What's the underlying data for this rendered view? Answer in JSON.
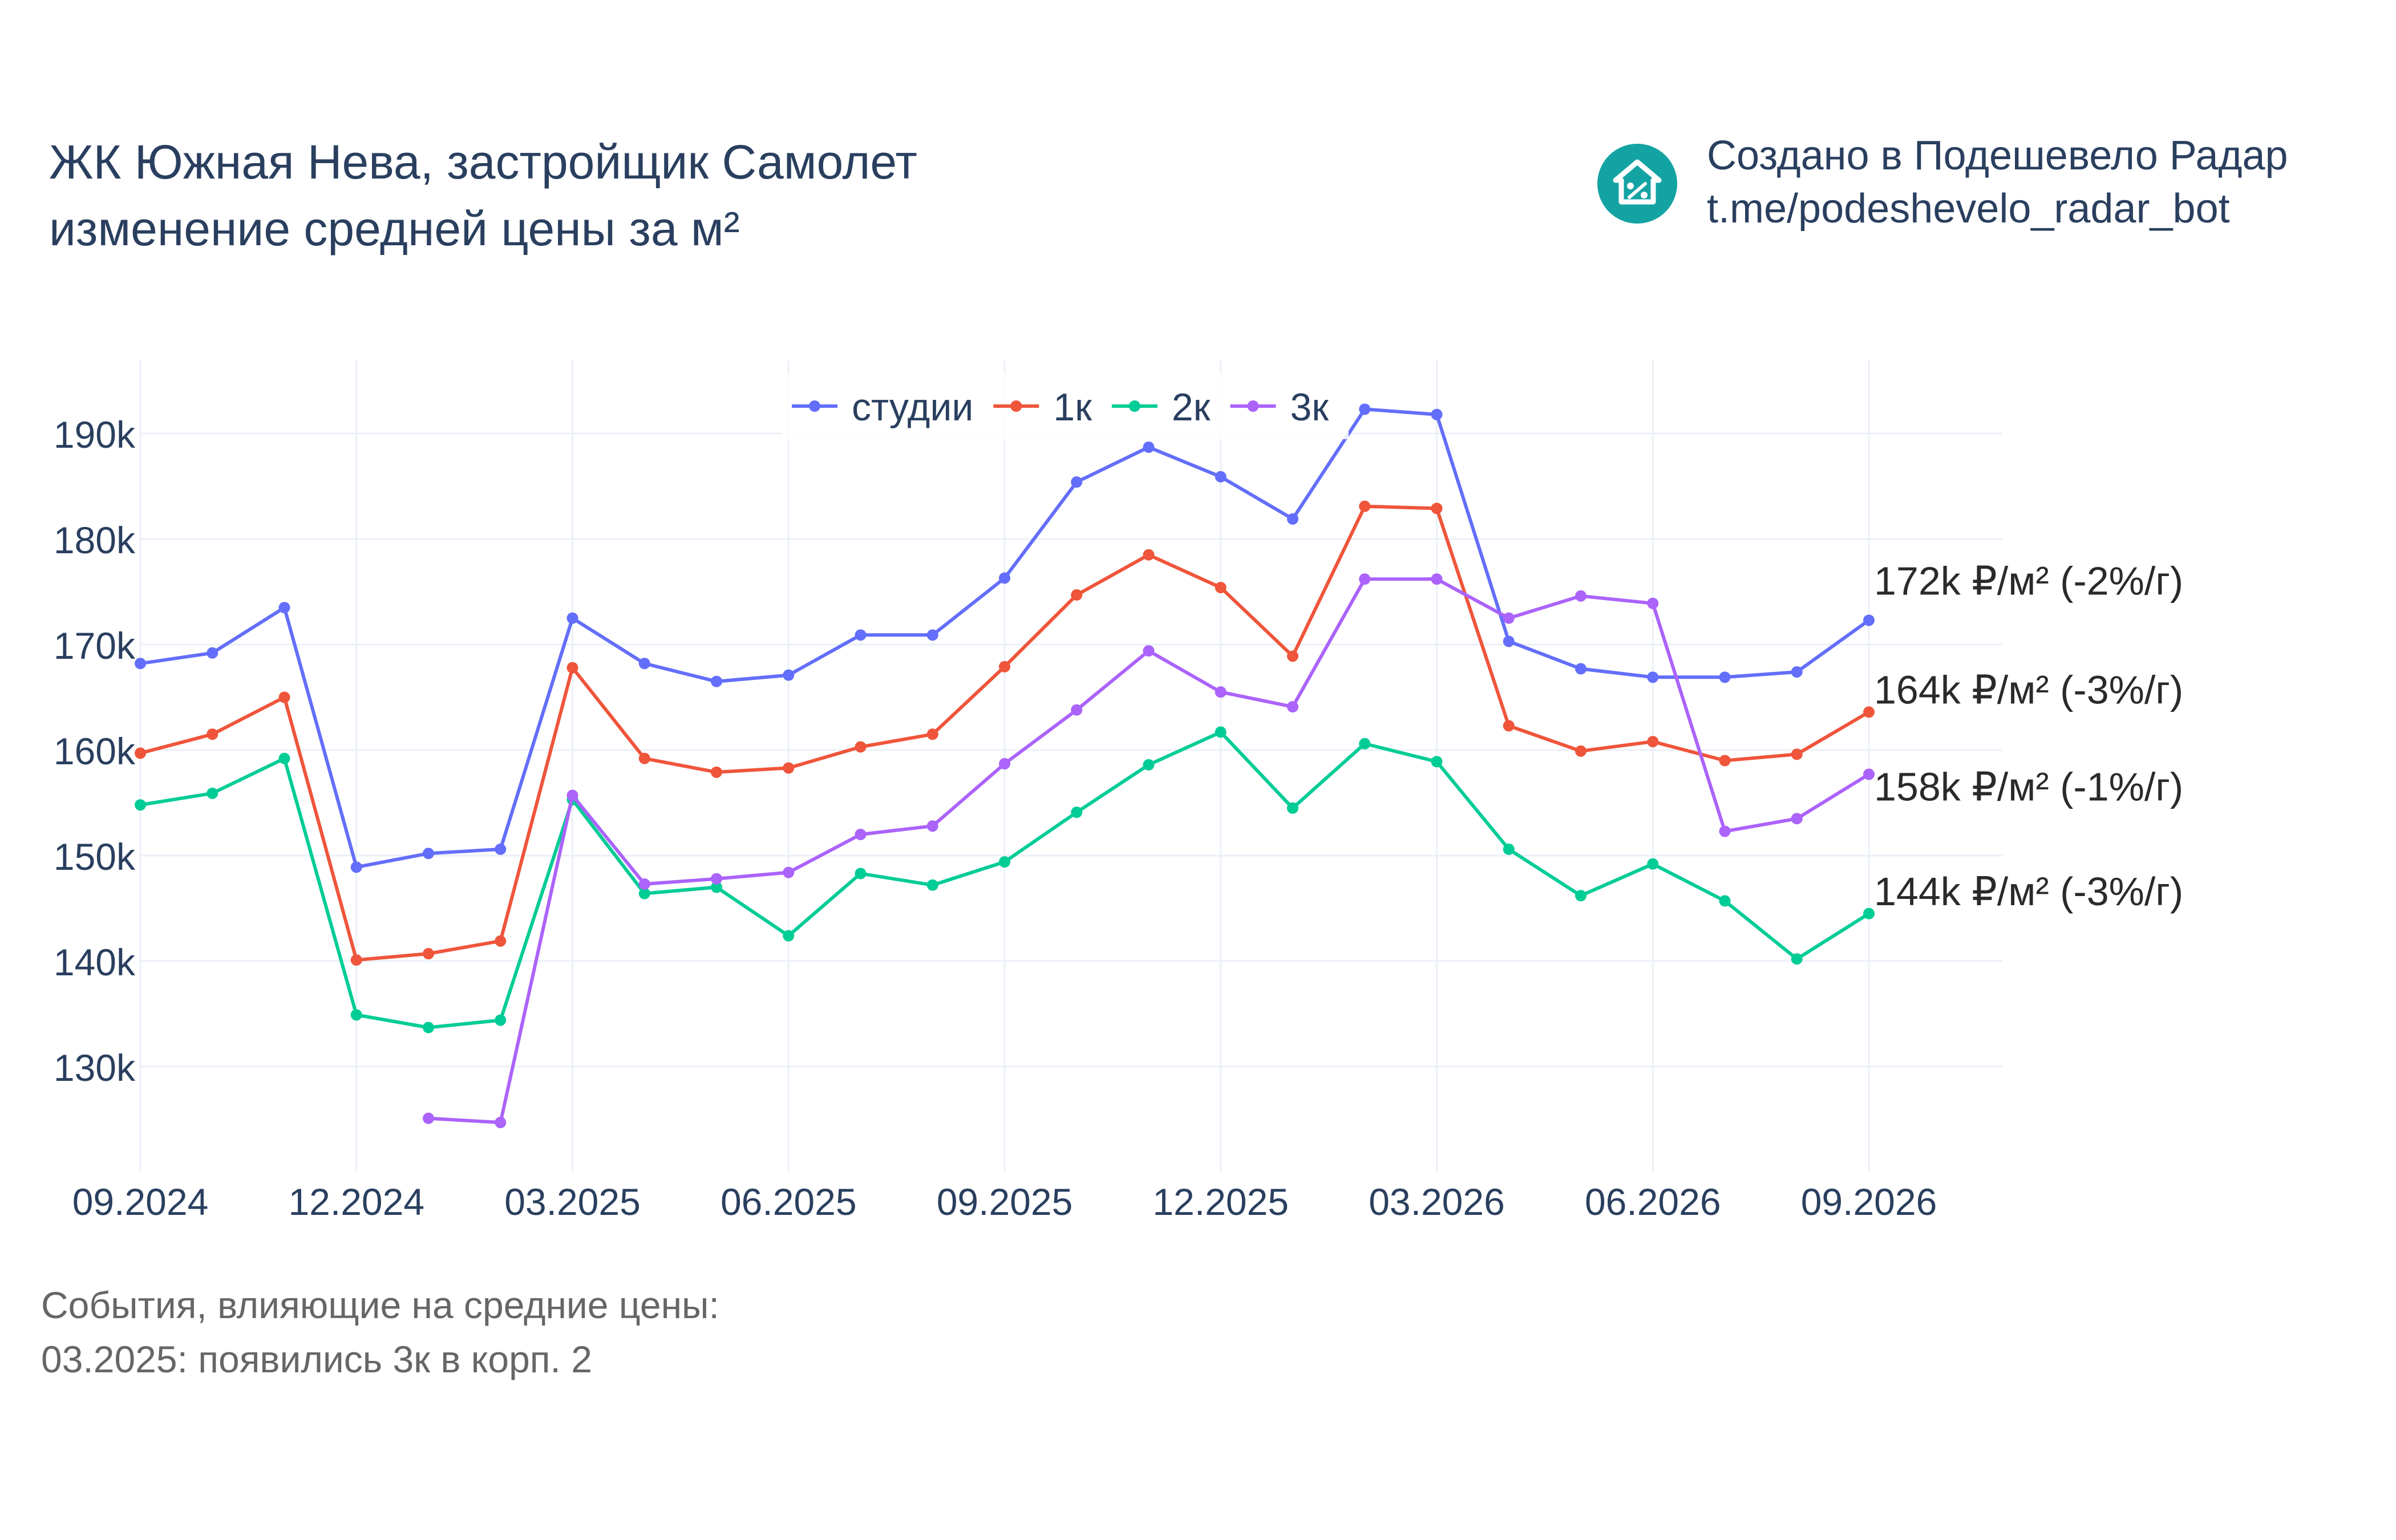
{
  "title": {
    "line1": "ЖК Южная Нева, застройщик Самолет",
    "line2": "изменение средней цены за м²"
  },
  "credit": {
    "line1": "Создано в Подешевело Радар",
    "line2": "t.me/podeshevelo_radar_bot",
    "logo_icon": "house-percent-icon",
    "logo_color": "#13a3a3"
  },
  "events": {
    "heading": "События, влияющие на средние цены:",
    "items": [
      "03.2025: появились 3к в корп. 2"
    ]
  },
  "chart_data": {
    "type": "line",
    "x": [
      "09.2024",
      "10.2024",
      "11.2024",
      "12.2024",
      "01.2025",
      "02.2025",
      "03.2025",
      "04.2025",
      "05.2025",
      "06.2025",
      "07.2025",
      "08.2025",
      "09.2025",
      "10.2025",
      "11.2025",
      "12.2025",
      "01.2026",
      "02.2026",
      "03.2026",
      "04.2026",
      "05.2026",
      "06.2026",
      "07.2026",
      "08.2026",
      "09.2026"
    ],
    "x_tick_labels": [
      "09.2024",
      "12.2024",
      "03.2025",
      "06.2025",
      "09.2025",
      "12.2025",
      "03.2026",
      "06.2026",
      "09.2026"
    ],
    "y_tick_labels": [
      "130k",
      "140k",
      "150k",
      "160k",
      "170k",
      "180k",
      "190k"
    ],
    "y_ticks": [
      130000,
      140000,
      150000,
      160000,
      170000,
      180000,
      190000
    ],
    "ylim": [
      120000,
      197000
    ],
    "grid": true,
    "legend_position": "top-center",
    "series": [
      {
        "name": "студии",
        "color": "#636efa",
        "values": [
          168200,
          169200,
          173500,
          148900,
          150200,
          150600,
          172500,
          168200,
          166500,
          167100,
          170900,
          170900,
          176300,
          185400,
          188700,
          185900,
          181900,
          192300,
          191800,
          170300,
          167700,
          166900,
          166900,
          167400,
          172300
        ],
        "end_label": "172k ₽/м² (-2%/г)"
      },
      {
        "name": "1к",
        "color": "#ef553b",
        "values": [
          159700,
          161500,
          165000,
          140100,
          140700,
          141900,
          167800,
          159200,
          157900,
          158300,
          160300,
          161500,
          167900,
          174700,
          178500,
          175400,
          168900,
          183100,
          182900,
          162300,
          159900,
          160800,
          159000,
          159600,
          163600
        ],
        "end_label": "164k ₽/м² (-3%/г)"
      },
      {
        "name": "2к",
        "color": "#00cc96",
        "values": [
          154800,
          155900,
          159200,
          134900,
          133700,
          134400,
          155300,
          146400,
          147000,
          142400,
          148300,
          147200,
          149400,
          154100,
          158600,
          161700,
          154500,
          160600,
          158900,
          150600,
          146200,
          149200,
          145700,
          140200,
          144500
        ],
        "end_label": "144k ₽/м² (-3%/г)"
      },
      {
        "name": "3к",
        "color": "#ab63fa",
        "values": [
          null,
          null,
          null,
          null,
          125100,
          124700,
          155700,
          147300,
          147800,
          148400,
          152000,
          152800,
          158700,
          163800,
          169400,
          165500,
          164100,
          176200,
          176200,
          172500,
          174600,
          173900,
          152300,
          153500,
          157700
        ],
        "end_label": "158k ₽/м² (-1%/г)"
      }
    ]
  }
}
